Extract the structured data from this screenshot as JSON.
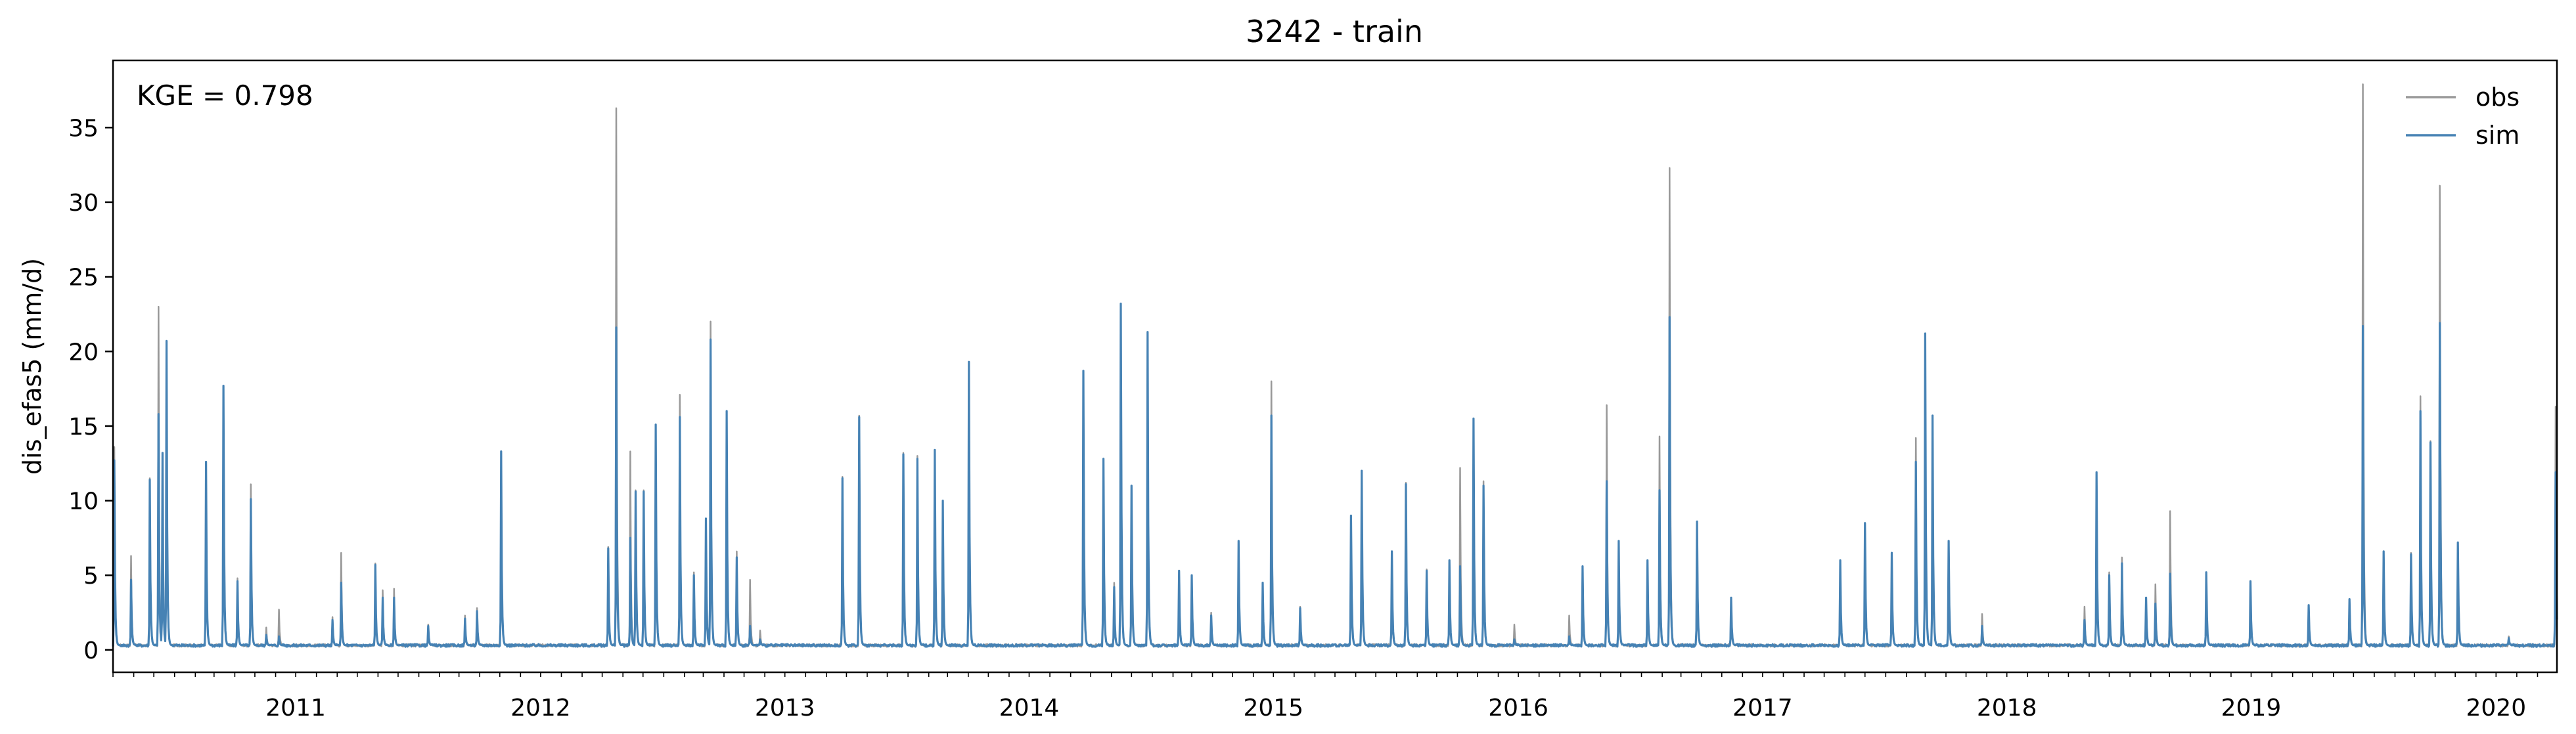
{
  "chart_data": {
    "type": "line",
    "title": "3242 - train",
    "xlabel": "",
    "ylabel": "dis_efas5 (mm/d)",
    "annotation": "KGE = 0.798",
    "x_range": [
      "2010-10-01",
      "2020-09-30"
    ],
    "ylim": [
      -1.5,
      39.5
    ],
    "y_ticks": [
      0,
      5,
      10,
      15,
      20,
      25,
      30,
      35
    ],
    "x_ticks": [
      "2011",
      "2012",
      "2013",
      "2014",
      "2015",
      "2016",
      "2017",
      "2018",
      "2019",
      "2020"
    ],
    "grid": false,
    "legend_position": "top-right",
    "baseline": 0.3,
    "series": [
      {
        "name": "obs",
        "color": "#999999",
        "peaks": [
          [
            "2010-10-03",
            13.6
          ],
          [
            "2010-10-28",
            6.3
          ],
          [
            "2010-11-25",
            11.5
          ],
          [
            "2010-12-08",
            23.0
          ],
          [
            "2010-12-14",
            13.2
          ],
          [
            "2010-12-20",
            20.5
          ],
          [
            "2011-02-17",
            12.6
          ],
          [
            "2011-03-15",
            17.7
          ],
          [
            "2011-04-05",
            4.8
          ],
          [
            "2011-04-25",
            11.1
          ],
          [
            "2011-05-18",
            1.5
          ],
          [
            "2011-06-06",
            2.7
          ],
          [
            "2011-08-25",
            2.2
          ],
          [
            "2011-09-07",
            6.5
          ],
          [
            "2011-10-28",
            5.8
          ],
          [
            "2011-11-08",
            4.0
          ],
          [
            "2011-11-25",
            4.1
          ],
          [
            "2012-01-15",
            1.7
          ],
          [
            "2012-03-10",
            2.3
          ],
          [
            "2012-03-28",
            2.8
          ],
          [
            "2012-05-03",
            13.2
          ],
          [
            "2012-10-10",
            6.9
          ],
          [
            "2012-10-22",
            36.3
          ],
          [
            "2012-11-12",
            13.3
          ],
          [
            "2012-11-20",
            10.7
          ],
          [
            "2012-12-02",
            10.7
          ],
          [
            "2012-12-20",
            15.1
          ],
          [
            "2013-01-25",
            17.1
          ],
          [
            "2013-02-15",
            5.2
          ],
          [
            "2013-03-05",
            8.8
          ],
          [
            "2013-03-12",
            22.0
          ],
          [
            "2013-04-05",
            16.0
          ],
          [
            "2013-04-20",
            6.6
          ],
          [
            "2013-05-10",
            4.7
          ],
          [
            "2013-05-25",
            1.3
          ],
          [
            "2013-09-25",
            11.6
          ],
          [
            "2013-10-20",
            15.7
          ],
          [
            "2013-12-25",
            13.2
          ],
          [
            "2014-01-15",
            13.0
          ],
          [
            "2014-02-10",
            13.4
          ],
          [
            "2014-02-22",
            10.0
          ],
          [
            "2014-04-02",
            19.3
          ],
          [
            "2014-09-20",
            18.7
          ],
          [
            "2014-10-20",
            12.8
          ],
          [
            "2014-11-05",
            4.5
          ],
          [
            "2014-11-15",
            23.2
          ],
          [
            "2014-12-01",
            11.0
          ],
          [
            "2014-12-25",
            21.3
          ],
          [
            "2015-02-10",
            5.3
          ],
          [
            "2015-03-01",
            5.0
          ],
          [
            "2015-03-30",
            2.5
          ],
          [
            "2015-05-10",
            7.2
          ],
          [
            "2015-06-15",
            4.5
          ],
          [
            "2015-06-28",
            18.0
          ],
          [
            "2015-08-10",
            2.9
          ],
          [
            "2015-10-25",
            8.9
          ],
          [
            "2015-11-10",
            12.0
          ],
          [
            "2015-12-25",
            4.9
          ],
          [
            "2016-01-15",
            11.2
          ],
          [
            "2016-02-15",
            5.4
          ],
          [
            "2016-03-20",
            6.0
          ],
          [
            "2016-04-05",
            12.2
          ],
          [
            "2016-04-25",
            15.5
          ],
          [
            "2016-05-10",
            11.3
          ],
          [
            "2016-06-25",
            1.7
          ],
          [
            "2016-09-15",
            2.3
          ],
          [
            "2016-10-05",
            5.6
          ],
          [
            "2016-11-10",
            16.4
          ],
          [
            "2016-11-28",
            7.3
          ],
          [
            "2017-01-10",
            5.6
          ],
          [
            "2017-01-28",
            14.3
          ],
          [
            "2017-02-12",
            32.3
          ],
          [
            "2017-03-25",
            8.6
          ],
          [
            "2017-05-15",
            3.5
          ],
          [
            "2017-10-25",
            6.0
          ],
          [
            "2017-12-01",
            8.5
          ],
          [
            "2018-01-10",
            6.5
          ],
          [
            "2018-02-15",
            14.2
          ],
          [
            "2018-03-01",
            21.2
          ],
          [
            "2018-03-12",
            15.7
          ],
          [
            "2018-04-05",
            7.3
          ],
          [
            "2018-05-25",
            2.4
          ],
          [
            "2018-10-25",
            2.9
          ],
          [
            "2018-11-12",
            11.8
          ],
          [
            "2018-12-01",
            5.2
          ],
          [
            "2018-12-20",
            6.2
          ],
          [
            "2019-01-25",
            3.5
          ],
          [
            "2019-02-08",
            4.4
          ],
          [
            "2019-03-02",
            9.3
          ],
          [
            "2019-04-25",
            5.2
          ],
          [
            "2019-06-30",
            4.6
          ],
          [
            "2019-09-25",
            3.0
          ],
          [
            "2019-11-25",
            3.4
          ],
          [
            "2019-12-15",
            37.9
          ],
          [
            "2020-01-15",
            6.6
          ],
          [
            "2020-02-25",
            6.5
          ],
          [
            "2020-03-10",
            17.0
          ],
          [
            "2020-03-25",
            14.0
          ],
          [
            "2020-04-08",
            31.1
          ],
          [
            "2020-05-05",
            7.2
          ],
          [
            "2020-07-20",
            0.9
          ],
          [
            "2020-09-28",
            16.3
          ]
        ]
      },
      {
        "name": "sim",
        "color": "#4682b4",
        "peaks": [
          [
            "2010-10-03",
            12.7
          ],
          [
            "2010-10-28",
            4.7
          ],
          [
            "2010-11-25",
            11.4
          ],
          [
            "2010-12-08",
            15.8
          ],
          [
            "2010-12-14",
            13.2
          ],
          [
            "2010-12-20",
            20.7
          ],
          [
            "2011-02-17",
            12.6
          ],
          [
            "2011-03-15",
            17.7
          ],
          [
            "2011-04-05",
            4.6
          ],
          [
            "2011-04-25",
            10.1
          ],
          [
            "2011-05-18",
            1.0
          ],
          [
            "2011-06-06",
            0.9
          ],
          [
            "2011-08-25",
            2.0
          ],
          [
            "2011-09-07",
            4.5
          ],
          [
            "2011-10-28",
            5.7
          ],
          [
            "2011-11-08",
            3.5
          ],
          [
            "2011-11-25",
            3.5
          ],
          [
            "2012-01-15",
            1.6
          ],
          [
            "2012-03-10",
            2.1
          ],
          [
            "2012-03-28",
            2.6
          ],
          [
            "2012-05-03",
            13.3
          ],
          [
            "2012-10-10",
            6.8
          ],
          [
            "2012-10-22",
            21.6
          ],
          [
            "2012-11-12",
            7.5
          ],
          [
            "2012-11-20",
            10.6
          ],
          [
            "2012-12-02",
            10.6
          ],
          [
            "2012-12-20",
            15.1
          ],
          [
            "2013-01-25",
            15.6
          ],
          [
            "2013-02-15",
            5.0
          ],
          [
            "2013-03-05",
            8.8
          ],
          [
            "2013-03-12",
            20.8
          ],
          [
            "2013-04-05",
            16.0
          ],
          [
            "2013-04-20",
            6.2
          ],
          [
            "2013-05-10",
            1.6
          ],
          [
            "2013-05-25",
            0.7
          ],
          [
            "2013-09-25",
            11.5
          ],
          [
            "2013-10-20",
            15.6
          ],
          [
            "2013-12-25",
            13.1
          ],
          [
            "2014-01-15",
            12.8
          ],
          [
            "2014-02-10",
            13.4
          ],
          [
            "2014-02-22",
            10.0
          ],
          [
            "2014-04-02",
            19.3
          ],
          [
            "2014-09-20",
            18.7
          ],
          [
            "2014-10-20",
            12.8
          ],
          [
            "2014-11-05",
            4.2
          ],
          [
            "2014-11-15",
            23.2
          ],
          [
            "2014-12-01",
            11.0
          ],
          [
            "2014-12-25",
            21.3
          ],
          [
            "2015-02-10",
            5.3
          ],
          [
            "2015-03-01",
            5.0
          ],
          [
            "2015-03-30",
            2.3
          ],
          [
            "2015-05-10",
            7.3
          ],
          [
            "2015-06-15",
            4.5
          ],
          [
            "2015-06-28",
            15.7
          ],
          [
            "2015-08-10",
            2.8
          ],
          [
            "2015-10-25",
            9.0
          ],
          [
            "2015-11-10",
            12.0
          ],
          [
            "2015-12-25",
            6.6
          ],
          [
            "2016-01-15",
            11.1
          ],
          [
            "2016-02-15",
            5.3
          ],
          [
            "2016-03-20",
            6.0
          ],
          [
            "2016-04-05",
            5.6
          ],
          [
            "2016-04-25",
            15.5
          ],
          [
            "2016-05-10",
            11.0
          ],
          [
            "2016-06-25",
            0.7
          ],
          [
            "2016-09-15",
            0.9
          ],
          [
            "2016-10-05",
            5.6
          ],
          [
            "2016-11-10",
            11.3
          ],
          [
            "2016-11-28",
            7.3
          ],
          [
            "2017-01-10",
            6.0
          ],
          [
            "2017-01-28",
            10.7
          ],
          [
            "2017-02-12",
            22.3
          ],
          [
            "2017-03-25",
            8.6
          ],
          [
            "2017-05-15",
            3.5
          ],
          [
            "2017-10-25",
            6.0
          ],
          [
            "2017-12-01",
            8.5
          ],
          [
            "2018-01-10",
            6.5
          ],
          [
            "2018-02-15",
            12.6
          ],
          [
            "2018-03-01",
            21.2
          ],
          [
            "2018-03-12",
            15.7
          ],
          [
            "2018-04-05",
            7.3
          ],
          [
            "2018-05-25",
            1.6
          ],
          [
            "2018-10-25",
            2.0
          ],
          [
            "2018-11-12",
            11.9
          ],
          [
            "2018-12-01",
            5.0
          ],
          [
            "2018-12-20",
            5.8
          ],
          [
            "2019-01-25",
            3.5
          ],
          [
            "2019-02-08",
            3.1
          ],
          [
            "2019-03-02",
            5.1
          ],
          [
            "2019-04-25",
            5.2
          ],
          [
            "2019-06-30",
            4.6
          ],
          [
            "2019-09-25",
            3.0
          ],
          [
            "2019-11-25",
            3.4
          ],
          [
            "2019-12-15",
            21.7
          ],
          [
            "2020-01-15",
            6.6
          ],
          [
            "2020-02-25",
            6.4
          ],
          [
            "2020-03-10",
            16.0
          ],
          [
            "2020-03-25",
            13.9
          ],
          [
            "2020-04-08",
            21.9
          ],
          [
            "2020-05-05",
            7.2
          ],
          [
            "2020-07-20",
            0.8
          ],
          [
            "2020-09-28",
            11.9
          ]
        ]
      }
    ]
  }
}
